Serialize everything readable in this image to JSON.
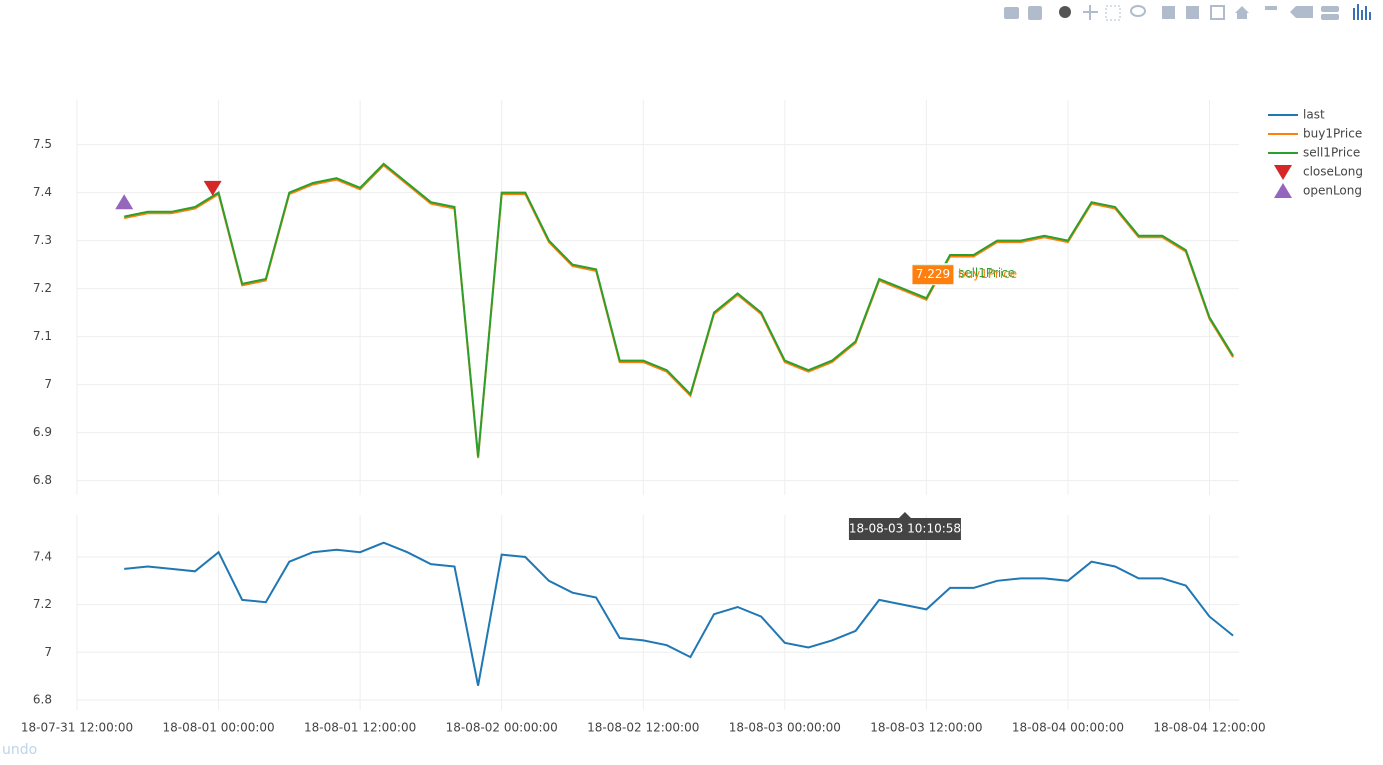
{
  "chart_data": {
    "type": "line",
    "x": [
      "18-07-31 16:00:00",
      "18-07-31 18:00:00",
      "18-07-31 20:00:00",
      "18-07-31 22:00:00",
      "18-08-01 00:00:00",
      "18-08-01 02:00:00",
      "18-08-01 04:00:00",
      "18-08-01 06:00:00",
      "18-08-01 08:00:00",
      "18-08-01 10:00:00",
      "18-08-01 12:00:00",
      "18-08-01 14:00:00",
      "18-08-01 16:00:00",
      "18-08-01 18:00:00",
      "18-08-01 20:00:00",
      "18-08-01 22:00:00",
      "18-08-02 00:00:00",
      "18-08-02 02:00:00",
      "18-08-02 04:00:00",
      "18-08-02 06:00:00",
      "18-08-02 08:00:00",
      "18-08-02 10:00:00",
      "18-08-02 12:00:00",
      "18-08-02 14:00:00",
      "18-08-02 16:00:00",
      "18-08-02 18:00:00",
      "18-08-02 20:00:00",
      "18-08-02 22:00:00",
      "18-08-03 00:00:00",
      "18-08-03 02:00:00",
      "18-08-03 04:00:00",
      "18-08-03 06:00:00",
      "18-08-03 08:00:00",
      "18-08-03 10:00:00",
      "18-08-03 12:00:00",
      "18-08-03 14:00:00",
      "18-08-03 16:00:00",
      "18-08-03 18:00:00",
      "18-08-03 20:00:00",
      "18-08-03 22:00:00",
      "18-08-04 00:00:00",
      "18-08-04 02:00:00",
      "18-08-04 04:00:00",
      "18-08-04 06:00:00",
      "18-08-04 08:00:00",
      "18-08-04 10:00:00",
      "18-08-04 12:00:00",
      "18-08-04 14:00:00"
    ],
    "series": [
      {
        "name": "last",
        "color": "#1f77b4",
        "axis": "y2",
        "values": [
          7.35,
          7.36,
          7.35,
          7.34,
          7.42,
          7.22,
          7.21,
          7.38,
          7.42,
          7.43,
          7.42,
          7.46,
          7.42,
          7.37,
          7.36,
          6.86,
          7.41,
          7.4,
          7.3,
          7.25,
          7.23,
          7.06,
          7.05,
          7.03,
          6.98,
          7.16,
          7.19,
          7.15,
          7.04,
          7.02,
          7.05,
          7.09,
          7.22,
          7.2,
          7.18,
          7.27,
          7.27,
          7.3,
          7.31,
          7.31,
          7.3,
          7.38,
          7.36,
          7.31,
          7.31,
          7.28,
          7.15,
          7.07
        ]
      },
      {
        "name": "buy1Price",
        "color": "#ff7f0e",
        "values": [
          7.347,
          7.357,
          7.357,
          7.367,
          7.397,
          7.207,
          7.217,
          7.397,
          7.417,
          7.427,
          7.407,
          7.457,
          7.417,
          7.377,
          7.367,
          6.847,
          7.397,
          7.397,
          7.297,
          7.247,
          7.237,
          7.047,
          7.047,
          7.027,
          6.977,
          7.147,
          7.187,
          7.147,
          7.047,
          7.027,
          7.047,
          7.087,
          7.217,
          7.197,
          7.177,
          7.267,
          7.267,
          7.297,
          7.297,
          7.307,
          7.297,
          7.377,
          7.367,
          7.307,
          7.307,
          7.277,
          7.137,
          7.057
        ]
      },
      {
        "name": "sell1Price",
        "color": "#2ca02c",
        "values": [
          7.35,
          7.36,
          7.36,
          7.37,
          7.4,
          7.21,
          7.22,
          7.4,
          7.42,
          7.43,
          7.41,
          7.46,
          7.42,
          7.38,
          7.37,
          6.85,
          7.4,
          7.4,
          7.3,
          7.25,
          7.24,
          7.05,
          7.05,
          7.03,
          6.98,
          7.15,
          7.19,
          7.15,
          7.05,
          7.03,
          7.05,
          7.09,
          7.22,
          7.2,
          7.18,
          7.27,
          7.27,
          7.3,
          7.3,
          7.31,
          7.3,
          7.38,
          7.37,
          7.31,
          7.31,
          7.28,
          7.14,
          7.06
        ]
      },
      {
        "name": "closeLong",
        "color": "#d62728",
        "mode": "markers",
        "symbol": "triangle-down",
        "x": [
          "18-07-31 23:30:00"
        ],
        "values": [
          7.41
        ]
      },
      {
        "name": "openLong",
        "color": "#9467bd",
        "mode": "markers",
        "symbol": "triangle-up",
        "x": [
          "18-07-31 16:00:00"
        ],
        "values": [
          7.38
        ]
      }
    ],
    "xlim": [
      "18-07-31 12:00:00",
      "18-08-04 14:30:00"
    ],
    "xticks": [
      "18-07-31 12:00:00",
      "18-08-01 00:00:00",
      "18-08-01 12:00:00",
      "18-08-02 00:00:00",
      "18-08-02 12:00:00",
      "18-08-03 00:00:00",
      "18-08-03 12:00:00",
      "18-08-04 00:00:00",
      "18-08-04 12:00:00"
    ],
    "ylim": [
      6.77,
      7.593
    ],
    "yticks": [
      6.8,
      6.9,
      7,
      7.1,
      7.2,
      7.3,
      7.4,
      7.5
    ],
    "y2lim": [
      6.758,
      7.576
    ],
    "y2ticks": [
      6.8,
      7,
      7.2,
      7.4
    ],
    "grid": true,
    "legend": "top-right",
    "hover": {
      "x": "18-08-03 10:10:58",
      "items": [
        {
          "series": 2,
          "value": 7.231
        },
        {
          "series": 1,
          "value": 7.229
        }
      ]
    },
    "undo_label": "undo"
  }
}
